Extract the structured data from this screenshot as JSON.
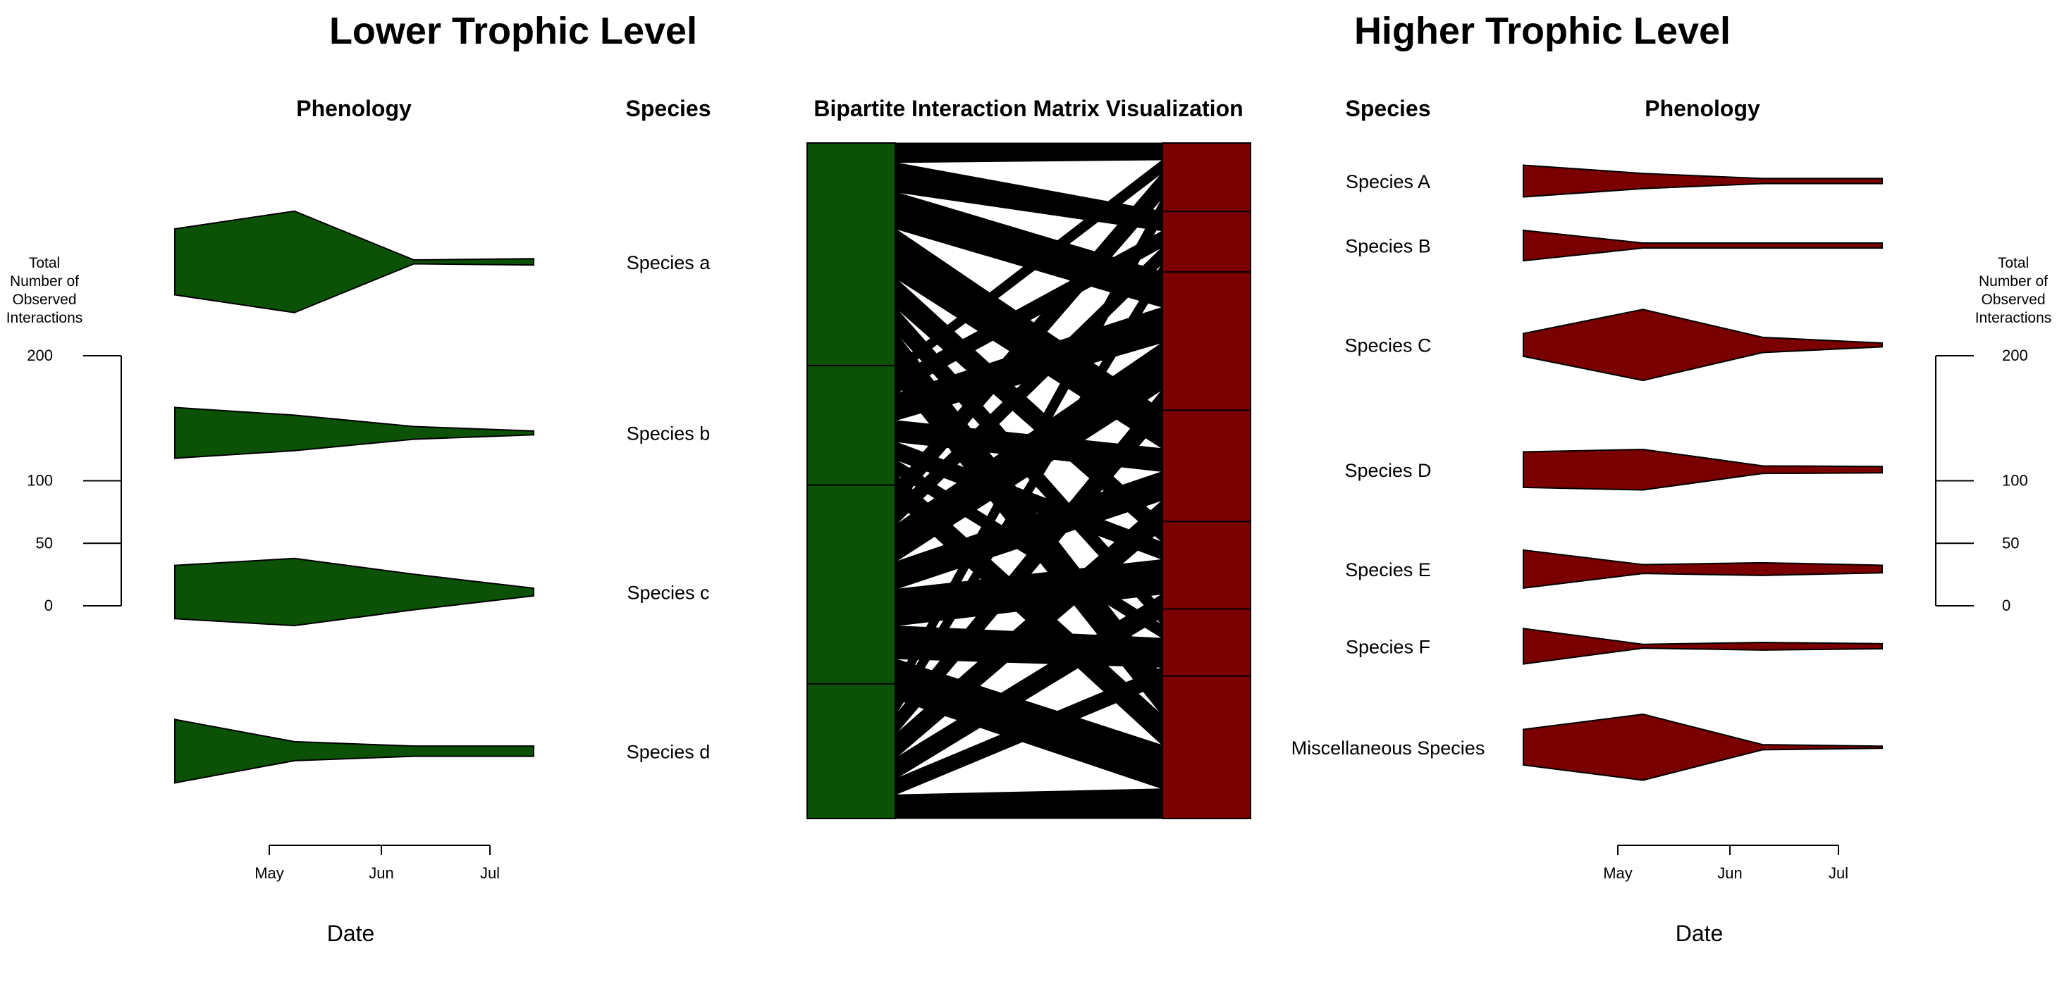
{
  "titles": {
    "left_main": "Lower Trophic Level",
    "right_main": "Higher Trophic Level",
    "left_phenology": "Phenology",
    "left_species": "Species",
    "center": "Bipartite Interaction Matrix Visualization",
    "right_species": "Species",
    "right_phenology": "Phenology"
  },
  "colors": {
    "lower": "#0b5207",
    "higher": "#7a0000",
    "links": "#000000"
  },
  "chart_data": {
    "type": "bipartite-phenology",
    "scale": {
      "label": "Total Number of Observed Interactions",
      "label_lines": [
        "Total",
        "Number of",
        "Observed",
        "Interactions"
      ],
      "ticks": [
        0,
        50,
        100,
        200
      ]
    },
    "date_axis": {
      "label": "Date",
      "ticks": [
        "May",
        "Jun",
        "Jul"
      ],
      "sample_points": [
        "2023-04-20",
        "2023-05-12",
        "2023-06-12",
        "2023-07-15"
      ]
    },
    "lower": [
      {
        "name": "Species a",
        "phenology": [
          52,
          80,
          3,
          5
        ],
        "interactions": 150
      },
      {
        "name": "Species b",
        "phenology": [
          40,
          28,
          10,
          3
        ],
        "interactions": 85
      },
      {
        "name": "Species c",
        "phenology": [
          42,
          53,
          28,
          6
        ],
        "interactions": 135
      },
      {
        "name": "Species d",
        "phenology": [
          50,
          15,
          8,
          8
        ],
        "interactions": 85
      }
    ],
    "higher": [
      {
        "name": "Species A",
        "phenology": [
          25,
          12,
          4,
          4
        ],
        "interactions": 48
      },
      {
        "name": "Species B",
        "phenology": [
          24,
          4,
          4,
          4
        ],
        "interactions": 43
      },
      {
        "name": "Species C",
        "phenology": [
          18,
          56,
          12,
          3
        ],
        "interactions": 92
      },
      {
        "name": "Species D",
        "phenology": [
          28,
          32,
          6,
          5
        ],
        "interactions": 75
      },
      {
        "name": "Species E",
        "phenology": [
          30,
          7,
          10,
          6
        ],
        "interactions": 60
      },
      {
        "name": "Species F",
        "phenology": [
          28,
          3,
          6,
          4
        ],
        "interactions": 47
      },
      {
        "name": "Miscellaneous Species",
        "phenology": [
          28,
          52,
          4,
          0
        ],
        "interactions": 90
      }
    ],
    "links": [
      {
        "from": "Species a",
        "to": "Species A",
        "weight": 8
      },
      {
        "from": "Species a",
        "to": "Species B",
        "weight": 12
      },
      {
        "from": "Species a",
        "to": "Species C",
        "weight": 15
      },
      {
        "from": "Species a",
        "to": "Species D",
        "weight": 20
      },
      {
        "from": "Species a",
        "to": "Species E",
        "weight": 12
      },
      {
        "from": "Species a",
        "to": "Species F",
        "weight": 10
      },
      {
        "from": "Species a",
        "to": "Miscellaneous Species",
        "weight": 20
      },
      {
        "from": "Species b",
        "to": "Species A",
        "weight": 6
      },
      {
        "from": "Species b",
        "to": "Species B",
        "weight": 10
      },
      {
        "from": "Species b",
        "to": "Species C",
        "weight": 15
      },
      {
        "from": "Species b",
        "to": "Species D",
        "weight": 12
      },
      {
        "from": "Species b",
        "to": "Species E",
        "weight": 10
      },
      {
        "from": "Species b",
        "to": "Species F",
        "weight": 8
      },
      {
        "from": "Species b",
        "to": "Miscellaneous Species",
        "weight": 15
      },
      {
        "from": "Species c",
        "to": "Species A",
        "weight": 12
      },
      {
        "from": "Species c",
        "to": "Species B",
        "weight": 10
      },
      {
        "from": "Species c",
        "to": "Species C",
        "weight": 20
      },
      {
        "from": "Species c",
        "to": "Species D",
        "weight": 15
      },
      {
        "from": "Species c",
        "to": "Species E",
        "weight": 20
      },
      {
        "from": "Species c",
        "to": "Species F",
        "weight": 18
      },
      {
        "from": "Species c",
        "to": "Miscellaneous Species",
        "weight": 22
      },
      {
        "from": "Species d",
        "to": "Species A",
        "weight": 10
      },
      {
        "from": "Species d",
        "to": "Species B",
        "weight": 10
      },
      {
        "from": "Species d",
        "to": "Species C",
        "weight": 12
      },
      {
        "from": "Species d",
        "to": "Species D",
        "weight": 15
      },
      {
        "from": "Species d",
        "to": "Species E",
        "weight": 13
      },
      {
        "from": "Species d",
        "to": "Species F",
        "weight": 10
      },
      {
        "from": "Species d",
        "to": "Miscellaneous Species",
        "weight": 15
      }
    ]
  }
}
